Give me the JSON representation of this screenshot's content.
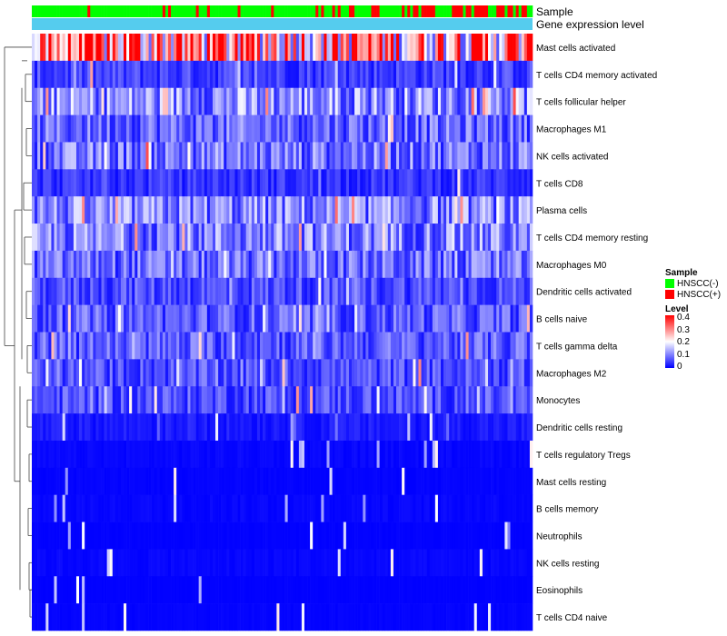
{
  "chart_data": {
    "type": "heatmap",
    "annotation_tracks": [
      "Sample",
      "Gene expression level"
    ],
    "rows": [
      "Mast cells activated",
      "T cells CD4 memory activated",
      "T cells follicular helper",
      "Macrophages M1",
      "NK cells activated",
      "T cells CD8",
      "Plasma cells",
      "T cells CD4 memory resting",
      "Macrophages M0",
      "Dendritic cells activated",
      "B cells naive",
      "T cells gamma delta",
      "Macrophages M2",
      "Monocytes",
      "Dendritic cells resting",
      "T cells regulatory  Tregs",
      "Mast cells resting",
      "B cells memory",
      "Neutrophils",
      "NK cells resting",
      "Eosinophils",
      "T cells CD4 naive"
    ],
    "row_mean_level": [
      0.28,
      0.05,
      0.11,
      0.08,
      0.09,
      0.04,
      0.1,
      0.1,
      0.08,
      0.06,
      0.07,
      0.07,
      0.06,
      0.06,
      0.02,
      0.01,
      0.005,
      0.01,
      0.003,
      0.01,
      0.002,
      0.005
    ],
    "n_samples": 180,
    "legend": {
      "sample_title": "Sample",
      "sample_entries": [
        {
          "label": "HNSCC(-)",
          "color": "#00ff00"
        },
        {
          "label": "HNSCC(+)",
          "color": "#ff0000"
        }
      ],
      "level_title": "Level",
      "level_ticks": [
        "0.4",
        "0.3",
        "0.2",
        "0.1",
        "0"
      ],
      "scale": {
        "min": 0,
        "max": 0.4,
        "low_color": "#0000ff",
        "mid_color": "#ffffff",
        "high_color": "#ff0000"
      }
    },
    "expression_track_color": "#55ccee"
  }
}
